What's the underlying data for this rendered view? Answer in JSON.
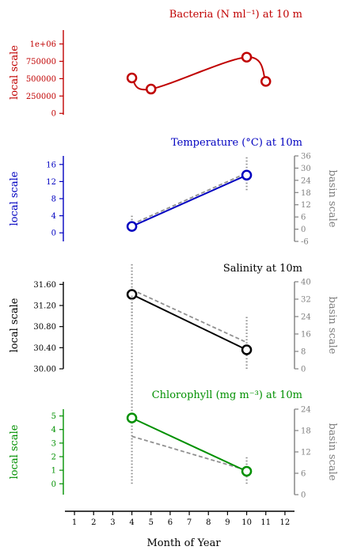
{
  "chart_data": [
    {
      "type": "line",
      "title": "Bacteria (N ml⁻¹) at 10 m",
      "ylabel": "local scale",
      "color": "#c00000",
      "ylim": [
        -20000,
        1200000
      ],
      "yticks": [
        "1e+06",
        "750000",
        "500000",
        "250000",
        "0"
      ],
      "ytick_values": [
        1000000,
        750000,
        500000,
        250000,
        0
      ],
      "series": [
        {
          "x": [
            4,
            5,
            10,
            11
          ],
          "y": [
            510000,
            350000,
            810000,
            460000
          ]
        }
      ]
    },
    {
      "type": "line",
      "title": "Temperature (°C) at 10m",
      "ylabel": "local scale",
      "y2label": "basin scale",
      "color": "#0000c0",
      "ylim": [
        -2,
        18
      ],
      "yticks": [
        "16",
        "12",
        "8",
        "4",
        "0"
      ],
      "ytick_values": [
        16,
        12,
        8,
        4,
        0
      ],
      "y2lim": [
        -6,
        36
      ],
      "y2ticks": [
        "36",
        "30",
        "24",
        "18",
        "12",
        "6",
        "0",
        "-6"
      ],
      "y2tick_values": [
        36,
        30,
        24,
        18,
        12,
        6,
        0,
        -6
      ],
      "series": [
        {
          "x": [
            4,
            10
          ],
          "y": [
            1.5,
            13.5
          ]
        }
      ],
      "basin_series": {
        "x": [
          4,
          10
        ],
        "y": [
          2,
          14
        ]
      },
      "basin_spread": {
        "x": [
          4,
          10
        ],
        "ymin": [
          1.5,
          10
        ],
        "ymax": [
          4,
          18
        ]
      }
    },
    {
      "type": "line",
      "title": "Salinity at 10m",
      "ylabel": "local scale",
      "y2label": "basin scale",
      "color": "#000000",
      "ylim": [
        30.0,
        31.65
      ],
      "yticks": [
        "31.60",
        "31.20",
        "30.80",
        "30.40",
        "30.00"
      ],
      "ytick_values": [
        31.6,
        31.2,
        30.8,
        30.4,
        30.0
      ],
      "y2lim": [
        0,
        40
      ],
      "y2ticks": [
        "40",
        "32",
        "24",
        "16",
        "8",
        "0"
      ],
      "y2tick_values": [
        40,
        32,
        24,
        16,
        8,
        0
      ],
      "series": [
        {
          "x": [
            4,
            10
          ],
          "y": [
            31.41,
            30.36
          ]
        }
      ],
      "basin_series": {
        "x": [
          4,
          10
        ],
        "y": [
          31.5,
          30.5
        ]
      },
      "basin_spread": {
        "x": [
          4,
          10
        ],
        "ymin": [
          31,
          30
        ],
        "ymax": [
          32,
          31
        ]
      }
    },
    {
      "type": "line",
      "title": "Chlorophyll (mg m⁻³) at 10m",
      "ylabel": "local scale",
      "y2label": "basin scale",
      "color": "#009000",
      "ylim": [
        -0.8,
        5.5
      ],
      "yticks": [
        "5",
        "4",
        "3",
        "2",
        "1",
        "0"
      ],
      "ytick_values": [
        5,
        4,
        3,
        2,
        1,
        0
      ],
      "y2lim": [
        0,
        24
      ],
      "y2ticks": [
        "24",
        "18",
        "12",
        "6",
        "0"
      ],
      "y2tick_values": [
        24,
        18,
        12,
        6,
        0
      ],
      "series": [
        {
          "x": [
            4,
            10
          ],
          "y": [
            4.85,
            0.92
          ]
        }
      ],
      "basin_series": {
        "x": [
          4,
          10
        ],
        "y": [
          3.5,
          1.0
        ]
      },
      "basin_spread": {
        "x": [
          4,
          10
        ],
        "ymin": [
          0,
          0
        ],
        "ymax": [
          14,
          2
        ]
      }
    }
  ],
  "xaxis": {
    "label": "Month of Year",
    "ticks": [
      "1",
      "2",
      "3",
      "4",
      "5",
      "6",
      "7",
      "8",
      "9",
      "10",
      "11",
      "12"
    ],
    "tick_values": [
      1,
      2,
      3,
      4,
      5,
      6,
      7,
      8,
      9,
      10,
      11,
      12
    ],
    "xlim": [
      0.5,
      12.5
    ]
  }
}
